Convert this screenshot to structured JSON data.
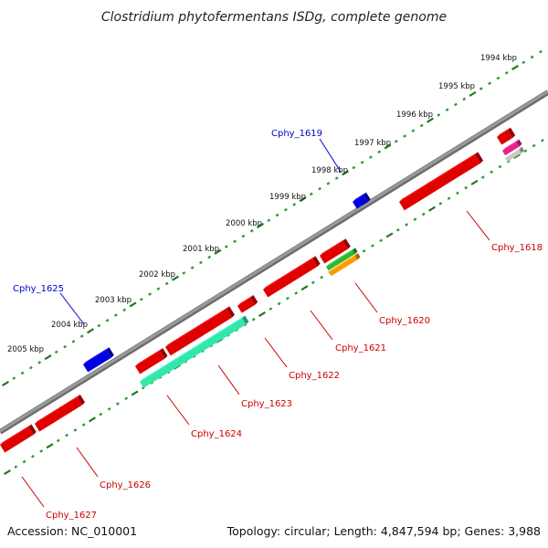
{
  "title": "Clostridium phytofermentans ISDg, complete genome",
  "footer": {
    "accession": "Accession: NC_010001",
    "summary": "Topology: circular; Length: 4,847,594 bp; Genes: 3,988"
  },
  "colors": {
    "backbone": "#8a8a8a",
    "tick_major": "#1f7a1f",
    "tick_minor": "#2f9e2f",
    "forward_gene": "#0000e0",
    "reverse_gene": "#e00000",
    "forward_label": "#0000cc",
    "reverse_label": "#cc0000",
    "cds_teal": "#33e6aa",
    "cds_green": "#33b533",
    "cds_orange": "#ff9900",
    "cds_magenta": "#e6228c",
    "cds_grey": "#c8c8c8"
  },
  "scale_labels": [
    "1994 kbp",
    "1995 kbp",
    "1996 kbp",
    "1997 kbp",
    "1998 kbp",
    "1999 kbp",
    "2000 kbp",
    "2001 kbp",
    "2002 kbp",
    "2003 kbp",
    "2004 kbp",
    "2005 kbp"
  ],
  "forward_genes": [
    {
      "label": "Cphy_1619",
      "color": "forward_gene"
    },
    {
      "label": "Cphy_1625",
      "color": "forward_gene"
    }
  ],
  "reverse_genes": [
    {
      "label": "Cphy_1618",
      "color": "reverse_gene"
    },
    {
      "label": "Cphy_1620",
      "color": "reverse_gene"
    },
    {
      "label": "Cphy_1621",
      "color": "reverse_gene"
    },
    {
      "label": "Cphy_1622",
      "color": "reverse_gene"
    },
    {
      "label": "Cphy_1623",
      "color": "reverse_gene"
    },
    {
      "label": "Cphy_1624",
      "color": "reverse_gene"
    },
    {
      "label": "Cphy_1626",
      "color": "reverse_gene"
    },
    {
      "label": "Cphy_1627",
      "color": "reverse_gene"
    }
  ]
}
